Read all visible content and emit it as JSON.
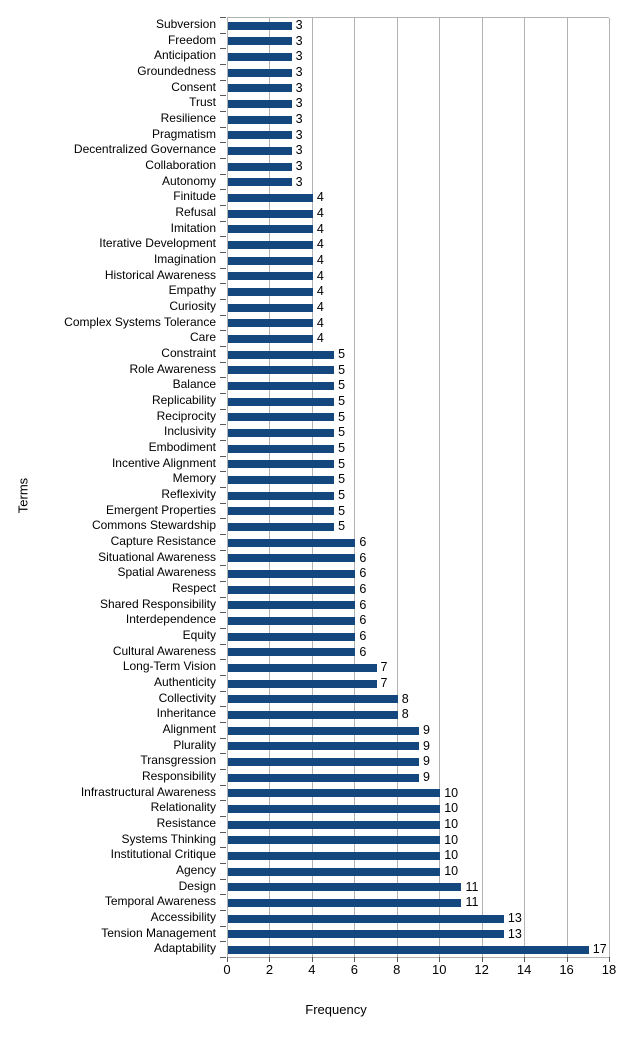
{
  "figure": {
    "background": "#ffffff"
  },
  "chart_data": {
    "type": "bar",
    "orientation": "horizontal",
    "title": "",
    "xlabel": "Frequency",
    "ylabel": "Terms",
    "xlim": [
      0,
      18
    ],
    "xticks": [
      0,
      2,
      4,
      6,
      8,
      10,
      12,
      14,
      16,
      18
    ],
    "grid": "vertical",
    "legend": "none",
    "value_labels_shown": true,
    "bar_color": "#14477d",
    "gridline_color": "#b3b3b3",
    "axis_line_color": "#b3b3b3",
    "tick_color": "#595959",
    "text_color": "#000000",
    "categories": [
      "Subversion",
      "Freedom",
      "Anticipation",
      "Groundedness",
      "Consent",
      "Trust",
      "Resilience",
      "Pragmatism",
      "Decentralized Governance",
      "Collaboration",
      "Autonomy",
      "Finitude",
      "Refusal",
      "Imitation",
      "Iterative Development",
      "Imagination",
      "Historical Awareness",
      "Empathy",
      "Curiosity",
      "Complex Systems Tolerance",
      "Care",
      "Constraint",
      "Role Awareness",
      "Balance",
      "Replicability",
      "Reciprocity",
      "Inclusivity",
      "Embodiment",
      "Incentive Alignment",
      "Memory",
      "Reflexivity",
      "Emergent Properties",
      "Commons Stewardship",
      "Capture Resistance",
      "Situational Awareness",
      "Spatial Awareness",
      "Respect",
      "Shared Responsibility",
      "Interdependence",
      "Equity",
      "Cultural Awareness",
      "Long-Term Vision",
      "Authenticity",
      "Collectivity",
      "Inheritance",
      "Alignment",
      "Plurality",
      "Transgression",
      "Responsibility",
      "Infrastructural Awareness",
      "Relationality",
      "Resistance",
      "Systems Thinking",
      "Institutional Critique",
      "Agency",
      "Design",
      "Temporal Awareness",
      "Accessibility",
      "Tension Management",
      "Adaptability"
    ],
    "values": [
      3,
      3,
      3,
      3,
      3,
      3,
      3,
      3,
      3,
      3,
      3,
      4,
      4,
      4,
      4,
      4,
      4,
      4,
      4,
      4,
      4,
      5,
      5,
      5,
      5,
      5,
      5,
      5,
      5,
      5,
      5,
      5,
      5,
      6,
      6,
      6,
      6,
      6,
      6,
      6,
      6,
      7,
      7,
      8,
      8,
      9,
      9,
      9,
      9,
      10,
      10,
      10,
      10,
      10,
      10,
      11,
      11,
      13,
      13,
      17
    ]
  }
}
